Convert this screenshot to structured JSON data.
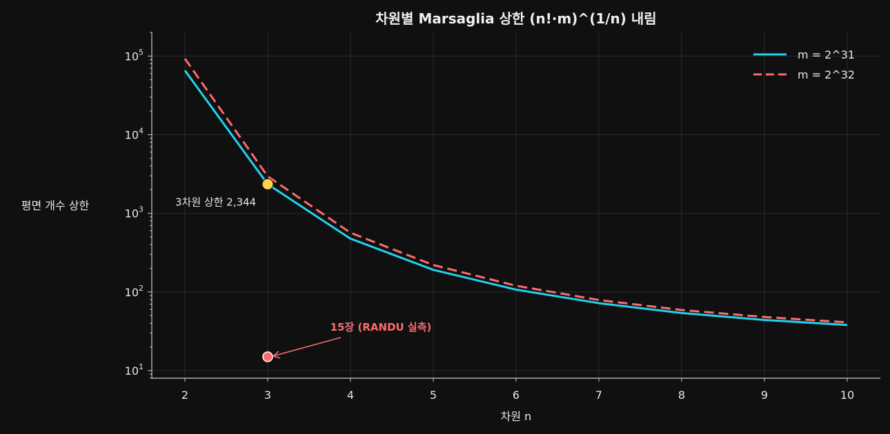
{
  "chart_data": {
    "type": "line",
    "title": "차원별 Marsaglia 상한 (n!·m)^(1/n) 내림",
    "xlabel": "차원 n",
    "ylabel": "평면 개수 상한",
    "x": [
      2,
      3,
      4,
      5,
      6,
      7,
      8,
      9,
      10
    ],
    "xlim": [
      1.6,
      10.4
    ],
    "ylim": [
      8,
      200000
    ],
    "yscale": "log",
    "yticks": [
      {
        "base": "10",
        "exp": "1",
        "value": 10
      },
      {
        "base": "10",
        "exp": "2",
        "value": 100
      },
      {
        "base": "10",
        "exp": "3",
        "value": 1000
      },
      {
        "base": "10",
        "exp": "4",
        "value": 10000
      },
      {
        "base": "10",
        "exp": "5",
        "value": 100000
      }
    ],
    "grid": true,
    "legend_position": "top-right",
    "series": [
      {
        "name": "m = 2^31",
        "style": "solid",
        "color": "#22d3ee",
        "values": [
          65536,
          2344,
          476,
          191,
          107,
          72,
          54,
          44,
          38
        ]
      },
      {
        "name": "m = 2^32",
        "style": "dashed",
        "color": "#ff6b6b",
        "values": [
          92681,
          2953,
          566,
          220,
          120,
          79,
          59,
          48,
          41
        ]
      }
    ],
    "annotations": [
      {
        "text": "3차원 상한 2,344",
        "x": 3,
        "y": 2344,
        "color": "#ffd24d"
      },
      {
        "text": "15장 (RANDU 실측)",
        "x": 3,
        "y": 15,
        "color": "#ff6b6b"
      }
    ]
  }
}
